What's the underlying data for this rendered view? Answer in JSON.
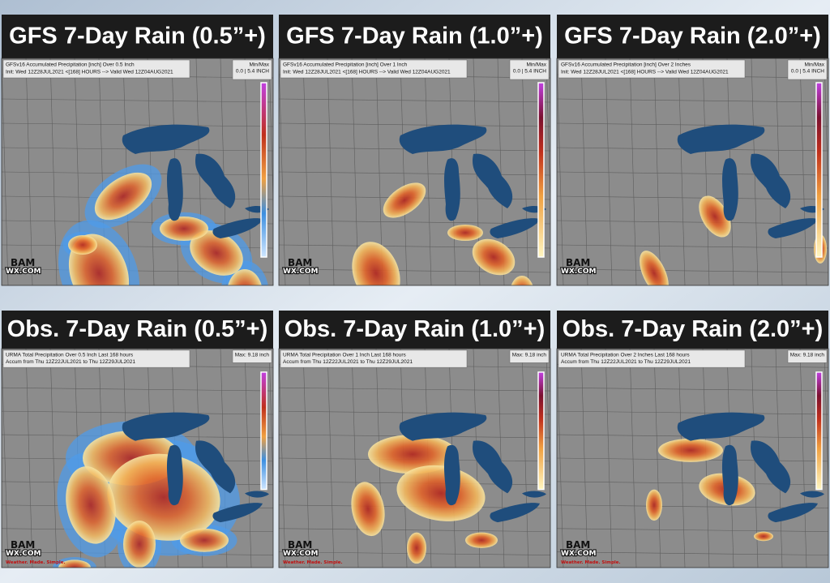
{
  "panels": [
    {
      "title": "GFS 7-Day Rain (0.5”+)",
      "header": [
        "GFSv16 Accumulated Precipitation [inch] Over 0.5 Inch",
        "Init: Wed 12Z28JUL2021 <[168] HOURS --> Valid Wed 12Z04AUG2021"
      ],
      "scale": [
        "Min/Max",
        "0.0 | 5.4 INCH"
      ],
      "logo": [
        "BAM",
        "WX.COM"
      ]
    },
    {
      "title": "GFS 7-Day Rain (1.0”+)",
      "header": [
        "GFSv16 Accumulated Precipitation [inch] Over 1 Inch",
        "Init: Wed 12Z28JUL2021 <[168] HOURS --> Valid Wed 12Z04AUG2021"
      ],
      "scale": [
        "Min/Max",
        "0.0 | 5.4 INCH"
      ],
      "logo": [
        "BAM",
        "WX.COM"
      ]
    },
    {
      "title": "GFS 7-Day Rain (2.0”+)",
      "header": [
        "GFSv16 Accumulated Precipitation [inch] Over 2 Inches",
        "Init: Wed 12Z28JUL2021 <[168] HOURS --> Valid Wed 12Z04AUG2021"
      ],
      "scale": [
        "Min/Max",
        "0.0 | 5.4 INCH"
      ],
      "logo": [
        "BAM",
        "WX.COM"
      ]
    },
    {
      "title": "Obs. 7-Day Rain (0.5”+)",
      "header": [
        "URMA Total Precipitation Over 0.5 Inch Last 168 hours",
        "Accum from Thu 12Z22JUL2021 to Thu 12Z29JUL2021"
      ],
      "scale": [
        "Max: 9.18 inch"
      ],
      "logo": [
        "BAM",
        "WX.COM",
        "Weather. Made. Simple."
      ]
    },
    {
      "title": "Obs. 7-Day Rain (1.0”+)",
      "header": [
        "URMA Total Precipitation Over 1 Inch Last 168 hours",
        "Accum from Thu 12Z22JUL2021 to Thu 12Z29JUL2021"
      ],
      "scale": [
        "Max: 9.18 inch"
      ],
      "logo": [
        "BAM",
        "WX.COM",
        "Weather. Made. Simple."
      ]
    },
    {
      "title": "Obs. 7-Day Rain (2.0”+)",
      "header": [
        "URMA Total Precipitation Over 2 Inches Last 168 hours",
        "Accum from Thu 12Z22JUL2021 to Thu 12Z29JUL2021"
      ],
      "scale": [
        "Max: 9.18 inch"
      ],
      "logo": [
        "BAM",
        "WX.COM",
        "Weather. Made. Simple."
      ]
    }
  ]
}
